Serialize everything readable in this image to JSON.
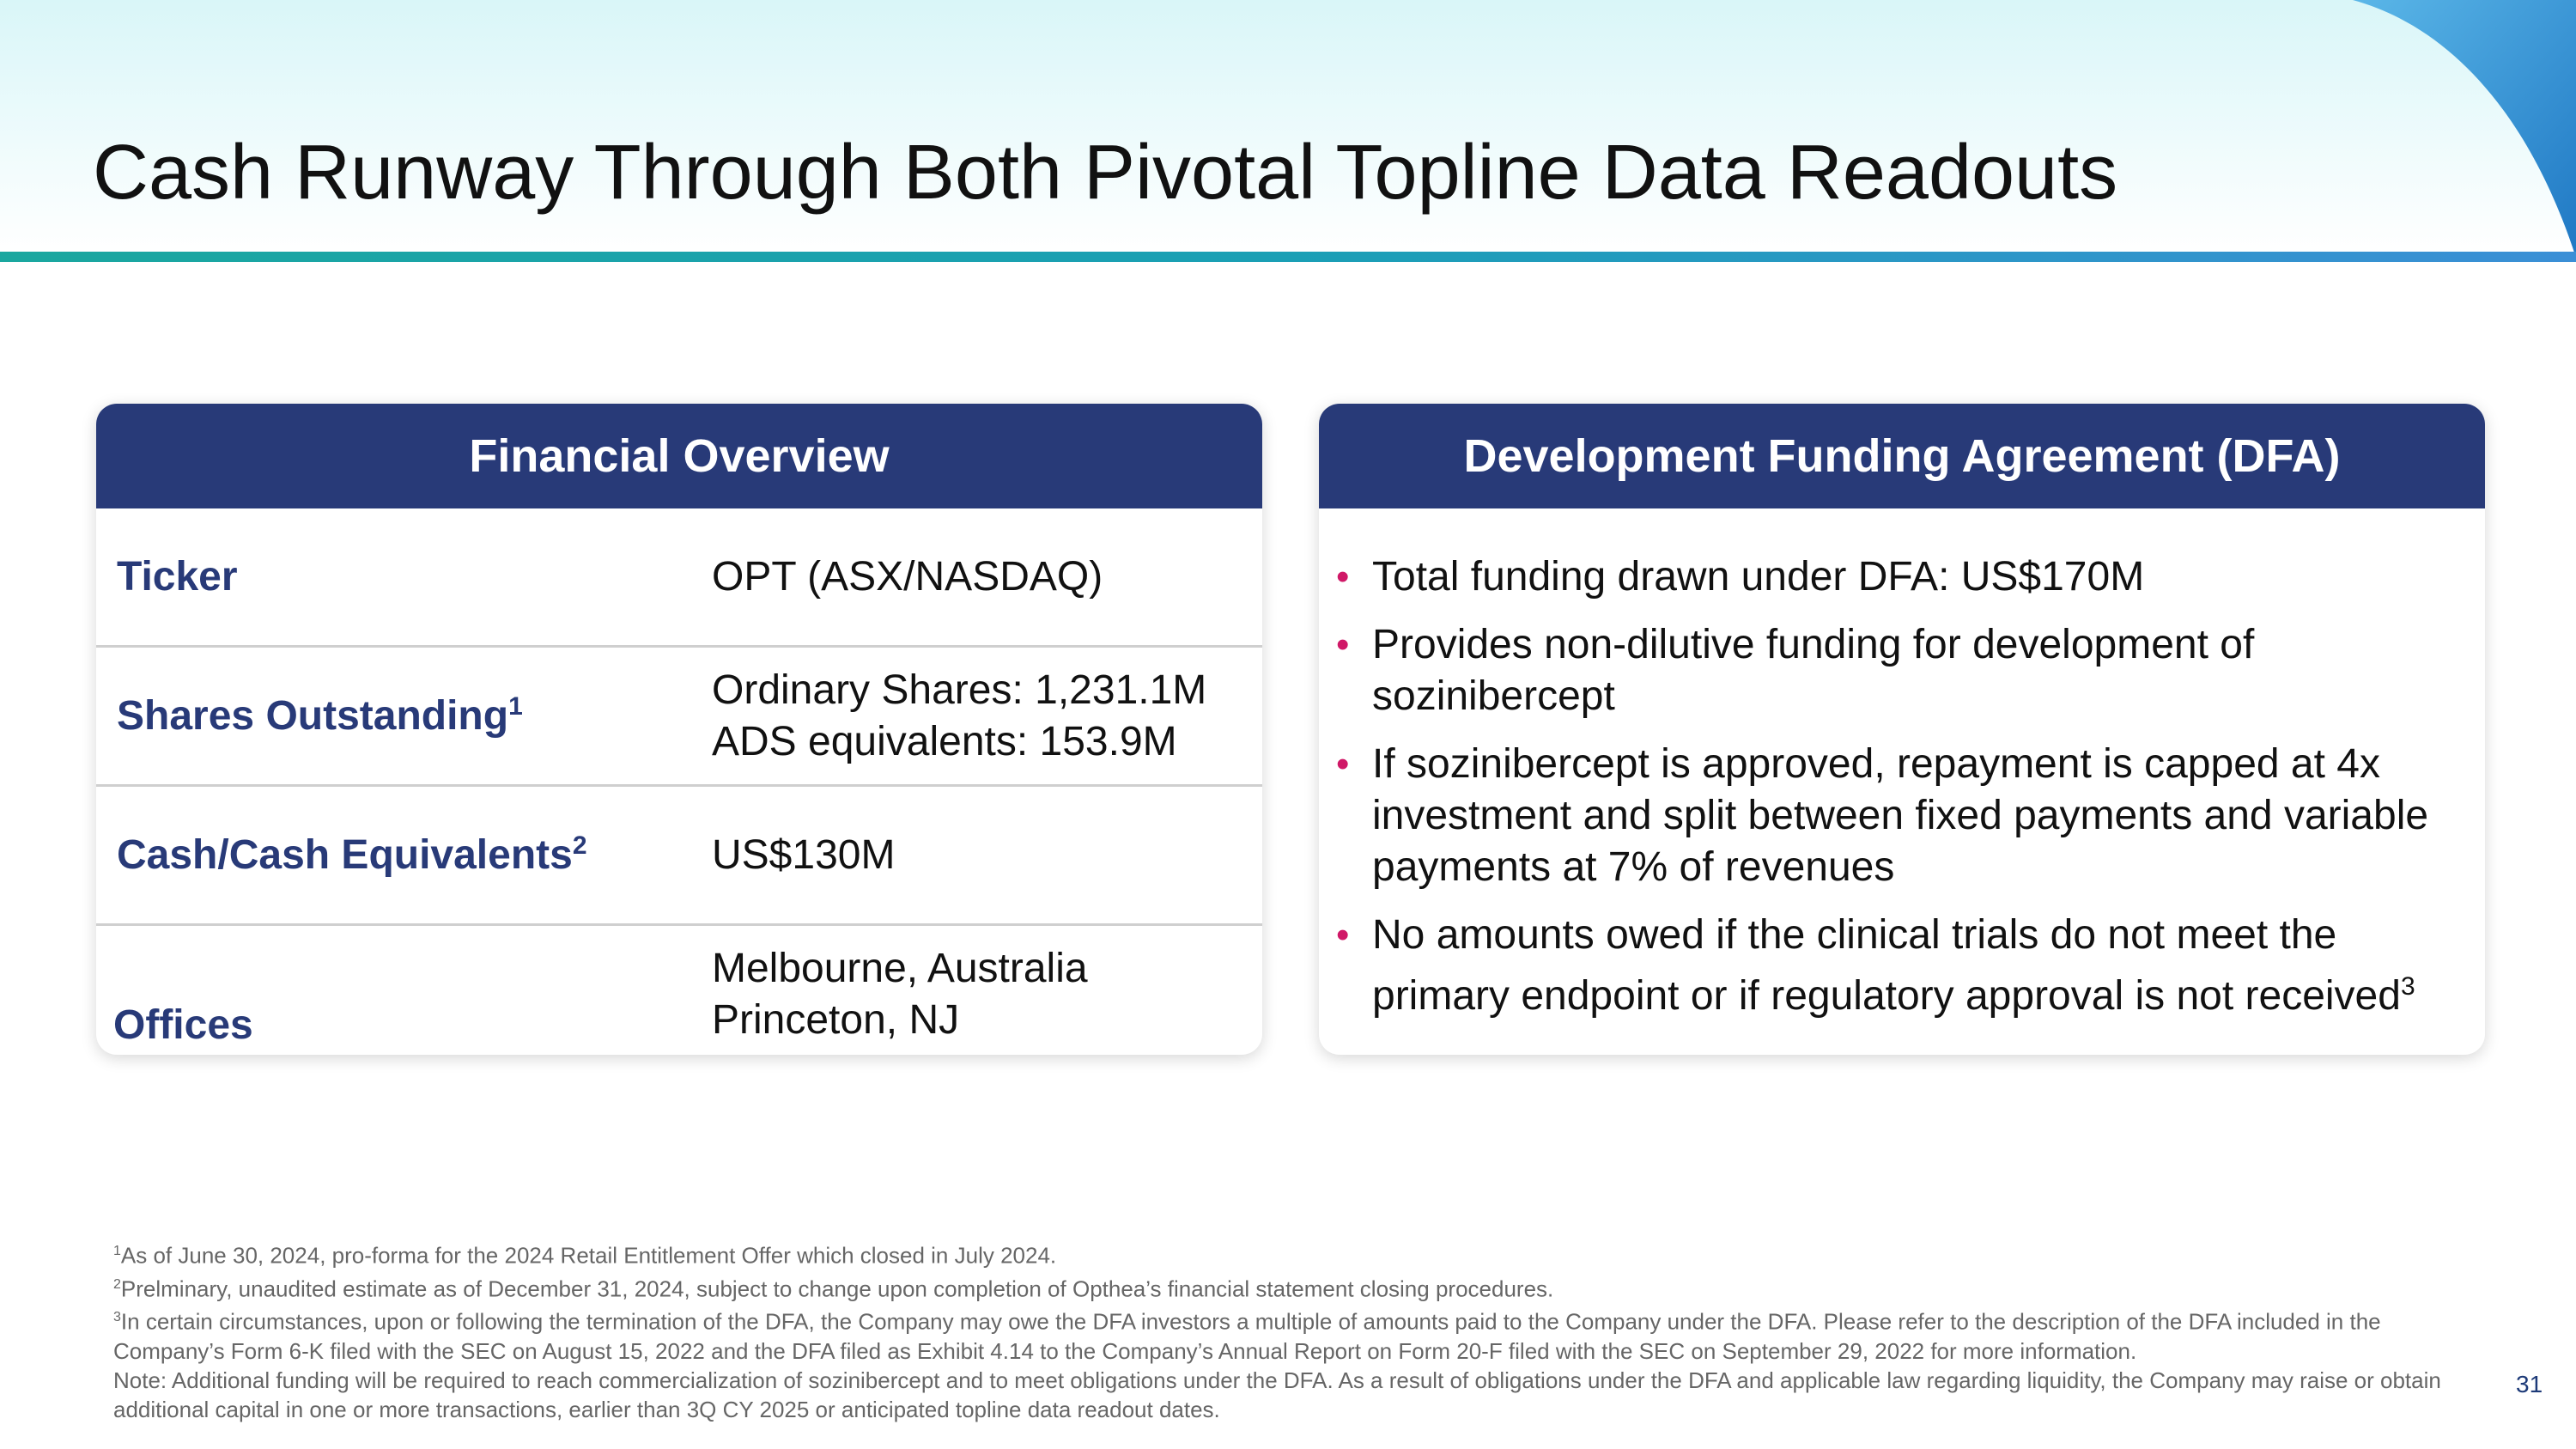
{
  "title": "Cash Runway Through Both Pivotal Topline Data Readouts",
  "colors": {
    "navy": "#283a78",
    "bullet": "#d01867",
    "teal_rule": "#1aa79f",
    "swoosh_blue": "#2f8fd0"
  },
  "financial_overview": {
    "heading": "Financial Overview",
    "rows": [
      {
        "label": "Ticker",
        "sup": "",
        "lines": [
          "OPT (ASX/NASDAQ)"
        ]
      },
      {
        "label": "Shares Outstanding",
        "sup": "1",
        "lines": [
          "Ordinary Shares: 1,231.1M",
          "ADS equivalents: 153.9M"
        ]
      },
      {
        "label": "Cash/Cash Equivalents",
        "sup": "2",
        "lines": [
          "US$130M"
        ]
      },
      {
        "label": "Offices",
        "sup": "",
        "lines": [
          "Melbourne, Australia",
          "Princeton, NJ"
        ]
      }
    ]
  },
  "dfa": {
    "heading": "Development Funding Agreement (DFA)",
    "bullets": [
      {
        "text": "Total funding drawn under DFA: US$170M",
        "sup": ""
      },
      {
        "text": "Provides non-dilutive funding for development of sozinibercept",
        "sup": ""
      },
      {
        "text": "If sozinibercept is approved, repayment is capped at 4x investment and split between fixed payments and variable payments at 7% of revenues",
        "sup": ""
      },
      {
        "text": "No amounts owed if the clinical trials do not meet the primary endpoint or if regulatory approval is not received",
        "sup": "3"
      }
    ]
  },
  "footnotes": [
    {
      "sup": "1",
      "text": "As of June 30, 2024, pro-forma for the 2024 Retail Entitlement Offer which closed in July 2024."
    },
    {
      "sup": "2",
      "text": "Prelminary, unaudited estimate as of December 31, 2024, subject to change upon completion of Opthea’s financial statement closing procedures."
    },
    {
      "sup": "3",
      "text": "In certain circumstances, upon or following the termination of the DFA, the Company may owe the DFA investors a multiple of amounts paid to the Company under the DFA. Please refer to the description of the DFA included in the Company’s Form 6-K filed with the SEC on August 15, 2022 and the DFA filed as Exhibit 4.14 to the Company’s Annual Report on Form 20-F filed with the SEC on September 29, 2022 for more information."
    },
    {
      "sup": "",
      "text": "Note: Additional funding will be required to reach commercialization of sozinibercept and to meet obligations under the DFA. As a result of obligations under the DFA and applicable law regarding liquidity, the Company may raise or obtain additional capital in one or more transactions, earlier than 3Q CY 2025 or anticipated topline data readout dates."
    }
  ],
  "page_number": "31"
}
